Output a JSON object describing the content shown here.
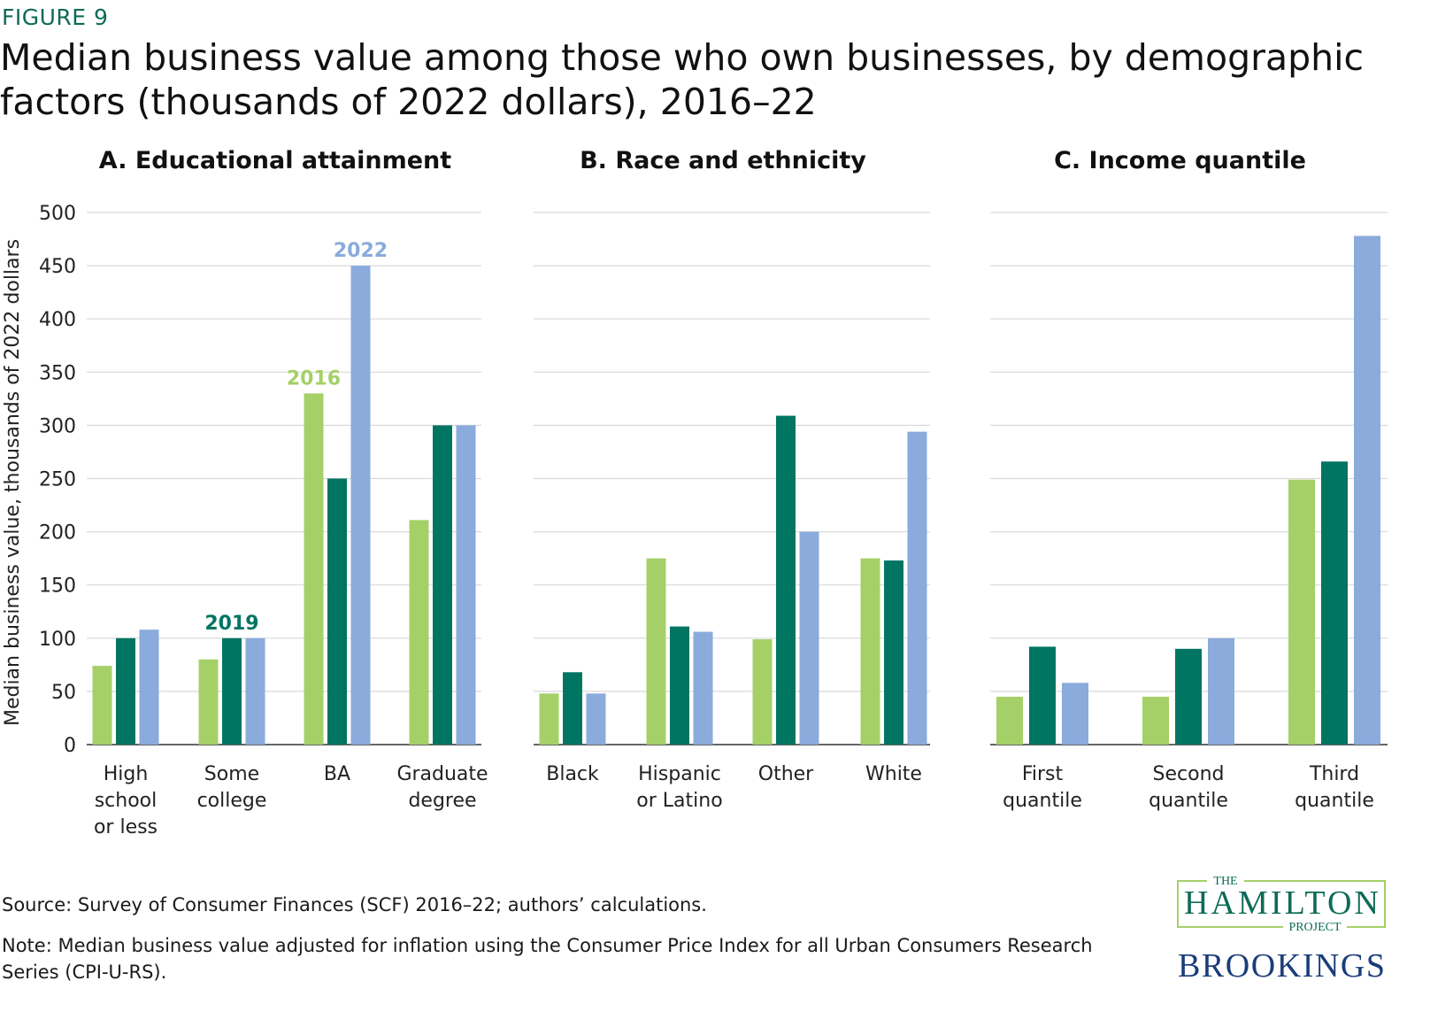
{
  "figure_label": "FIGURE 9",
  "title": "Median business value among those who own businesses, by demographic factors (thousands of 2022 dollars), 2016–22",
  "source": "Source: Survey of Consumer Finances (SCF) 2016–22; authors’ calculations.",
  "note": "Note: Median business value adjusted for inflation using the Consumer Price Index for all Urban Consumers Research Series (CPI-U-RS).",
  "logo": {
    "line1": "THE",
    "line2": "HAMILTON",
    "line3": "PROJECT",
    "line4": "BROOKINGS"
  },
  "colors": {
    "2016": "#a5d068",
    "2019": "#007562",
    "2022": "#8aabdb"
  },
  "chart_data": [
    {
      "type": "bar",
      "title": "A. Educational attainment",
      "ylabel": "Median business value, thousands of 2022 dollars",
      "ylim": [
        0,
        500
      ],
      "yticks": [
        0,
        50,
        100,
        150,
        200,
        250,
        300,
        350,
        400,
        450,
        500
      ],
      "grid": true,
      "categories": [
        "High school or less",
        "Some college",
        "BA",
        "Graduate degree"
      ],
      "series": [
        {
          "name": "2016",
          "values": [
            74,
            80,
            330,
            211
          ]
        },
        {
          "name": "2019",
          "values": [
            100,
            100,
            250,
            300
          ]
        },
        {
          "name": "2022",
          "values": [
            108,
            100,
            450,
            300
          ]
        }
      ]
    },
    {
      "type": "bar",
      "title": "B. Race and ethnicity",
      "ylim": [
        0,
        500
      ],
      "grid": true,
      "categories": [
        "Black",
        "Hispanic or Latino",
        "Other",
        "White"
      ],
      "series": [
        {
          "name": "2016",
          "values": [
            48,
            175,
            99,
            175
          ]
        },
        {
          "name": "2019",
          "values": [
            68,
            111,
            309,
            173
          ]
        },
        {
          "name": "2022",
          "values": [
            48,
            106,
            200,
            294
          ]
        }
      ]
    },
    {
      "type": "bar",
      "title": "C. Income quantile",
      "ylim": [
        0,
        500
      ],
      "grid": true,
      "categories": [
        "First quantile",
        "Second quantile",
        "Third quantile"
      ],
      "series": [
        {
          "name": "2016",
          "values": [
            45,
            45,
            249
          ]
        },
        {
          "name": "2019",
          "values": [
            92,
            90,
            266
          ]
        },
        {
          "name": "2022",
          "values": [
            58,
            100,
            478
          ]
        }
      ]
    }
  ]
}
